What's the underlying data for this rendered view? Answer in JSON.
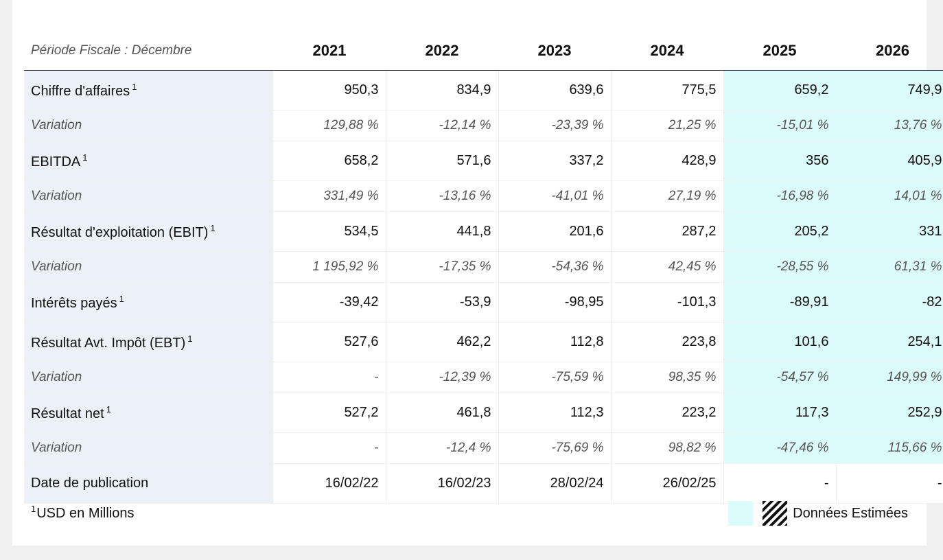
{
  "header": {
    "period_label": "Période Fiscale : Décembre",
    "years": [
      "2021",
      "2022",
      "2023",
      "2024",
      "2025",
      "2026"
    ]
  },
  "rows": [
    {
      "label": "Chiffre d'affaires",
      "sup": "1",
      "values": [
        "950,3",
        "834,9",
        "639,6",
        "775,5",
        "659,2",
        "749,9"
      ]
    },
    {
      "label": "Variation",
      "values": [
        "129,88 %",
        "-12,14 %",
        "-23,39 %",
        "21,25 %",
        "-15,01 %",
        "13,76 %"
      ]
    },
    {
      "label": "EBITDA",
      "sup": "1",
      "values": [
        "658,2",
        "571,6",
        "337,2",
        "428,9",
        "356",
        "405,9"
      ]
    },
    {
      "label": "Variation",
      "values": [
        "331,49 %",
        "-13,16 %",
        "-41,01 %",
        "27,19 %",
        "-16,98 %",
        "14,01 %"
      ]
    },
    {
      "label": "Résultat d'exploitation (EBIT)",
      "sup": "1",
      "values": [
        "534,5",
        "441,8",
        "201,6",
        "287,2",
        "205,2",
        "331"
      ]
    },
    {
      "label": "Variation",
      "values": [
        "1 195,92 %",
        "-17,35 %",
        "-54,36 %",
        "42,45 %",
        "-28,55 %",
        "61,31 %"
      ]
    },
    {
      "label": "Intérêts payés",
      "sup": "1",
      "values": [
        "-39,42",
        "-53,9",
        "-98,95",
        "-101,3",
        "-89,91",
        "-82"
      ]
    },
    {
      "label": "Résultat Avt. Impôt (EBT)",
      "sup": "1",
      "values": [
        "527,6",
        "462,2",
        "112,8",
        "223,8",
        "101,6",
        "254,1"
      ]
    },
    {
      "label": "Variation",
      "values": [
        "-",
        "-12,39 %",
        "-75,59 %",
        "98,35 %",
        "-54,57 %",
        "149,99 %"
      ]
    },
    {
      "label": "Résultat net",
      "sup": "1",
      "values": [
        "527,2",
        "461,8",
        "112,3",
        "223,2",
        "117,3",
        "252,9"
      ]
    },
    {
      "label": "Variation",
      "values": [
        "-",
        "-12,4 %",
        "-75,69 %",
        "98,82 %",
        "-47,46 %",
        "115,66 %"
      ]
    },
    {
      "label": "Date de publication",
      "values": [
        "16/02/22",
        "16/02/23",
        "28/02/24",
        "26/02/25",
        "-",
        "-"
      ]
    }
  ],
  "footer": {
    "note_sup": "1",
    "note_text": "USD en Millions",
    "legend_label": "Données Estimées"
  },
  "colors": {
    "estimated_bg": "#dcfbfb",
    "label_bg": "#ebf1f6"
  }
}
